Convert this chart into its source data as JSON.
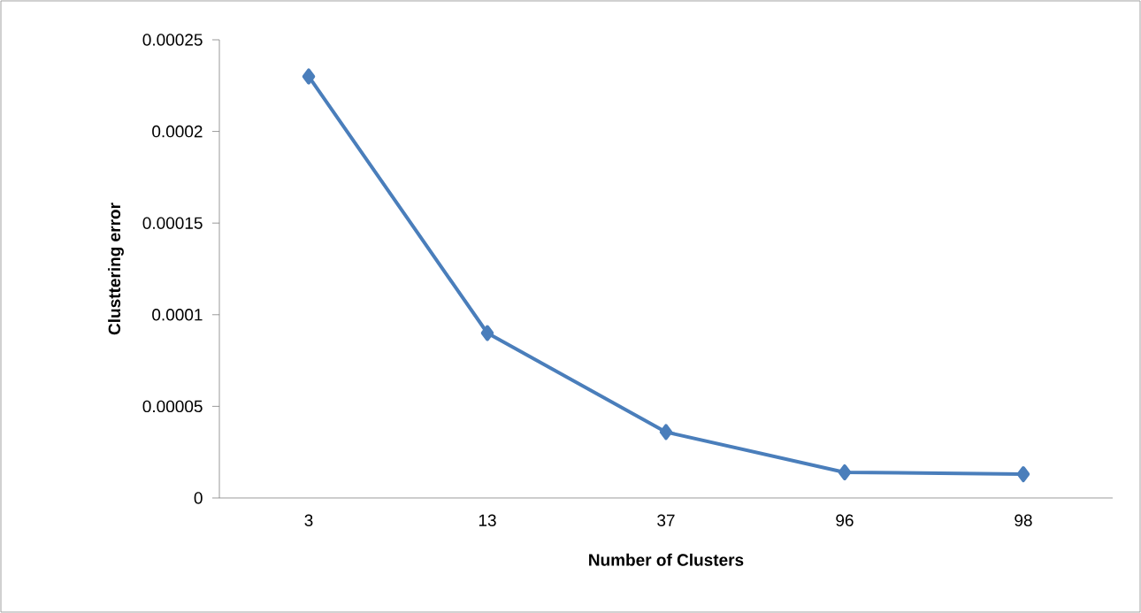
{
  "chart_data": {
    "type": "line",
    "xlabel": "Number of Clusters",
    "ylabel": "Clusttering error",
    "categories": [
      "3",
      "13",
      "37",
      "96",
      "98"
    ],
    "series": [
      {
        "color": "#4a7ebb",
        "values": [
          0.00023,
          9e-05,
          3.6e-05,
          1.4e-05,
          1.3e-05
        ]
      }
    ],
    "ylim": [
      0,
      0.00025
    ],
    "yticks": [
      0,
      {
        "value": 5e-05,
        "label": "0.00005"
      },
      0.0001,
      0.00015,
      0.0002,
      0.00025
    ],
    "marker": "diamond",
    "line_style": "solid",
    "grid": false
  }
}
